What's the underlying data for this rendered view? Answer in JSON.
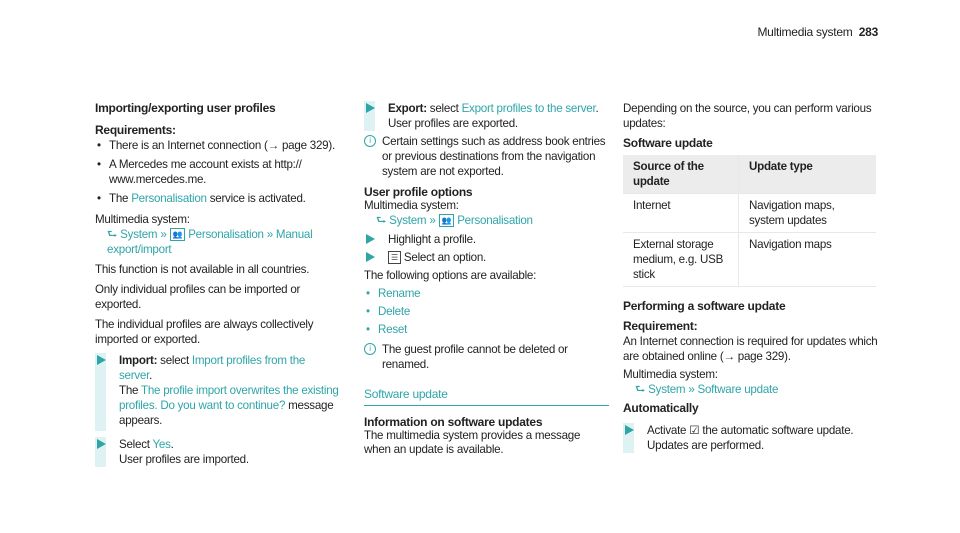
{
  "header": {
    "section": "Multimedia system",
    "page": "283"
  },
  "col1": {
    "title": "Importing/exporting user profiles",
    "req": "Requirements:",
    "b1": "There is an Internet connection (→ page 329).",
    "b2": "A Mercedes me account exists at http:// www.mercedes.me.",
    "b3a": "The ",
    "b3b": "Personalisation",
    "b3c": " service is activated.",
    "ms": "Multimedia system:",
    "path": [
      "System",
      "Personalisation",
      "Manual export/import"
    ],
    "p1": "This function is not available in all countries.",
    "p2": "Only individual profiles can be imported or exported.",
    "p3": "The individual profiles are always collectively imported or exported.",
    "s1a": "Import:",
    "s1b": " select ",
    "s1c": "Import profiles from the server",
    "s1d": ".",
    "s1e": "The ",
    "s1f": "The profile import overwrites the existing profiles. Do you want to continue?",
    "s1g": " message appears.",
    "s2a": "Select ",
    "s2b": "Yes",
    "s2c": ".",
    "s2d": "User profiles are imported."
  },
  "col2": {
    "s1a": "Export:",
    "s1b": " select ",
    "s1c": "Export profiles to the server",
    "s1d": ".",
    "s1e": "User profiles are exported.",
    "i1": "Certain settings such as address book entries or previous destinations from the navigation system are not exported.",
    "opt": "User profile options",
    "ms": "Multimedia system:",
    "path": [
      "System",
      "Personalisation"
    ],
    "h1": "Highlight a profile.",
    "h2": "Select an option.",
    "fol": "The following options are available:",
    "options": [
      "Rename",
      "Delete",
      "Reset"
    ],
    "i2": "The guest profile cannot be deleted or renamed.",
    "sec": "Software update",
    "inf": "Information on software updates",
    "infp": "The multimedia system provides a message when an update is available."
  },
  "col3": {
    "p1": "Depending on the source, you can perform various updates:",
    "sw": "Software update",
    "table": {
      "headers": [
        "Source of the update",
        "Update type"
      ],
      "rows": [
        [
          "Internet",
          "Navigation maps, system updates"
        ],
        [
          "External storage medium, e.g. USB stick",
          "Navigation maps"
        ]
      ]
    },
    "perf": "Performing a software update",
    "req": "Requirement:",
    "reqp": "An Internet connection is required for updates which are obtained online (→ page 329).",
    "ms": "Multimedia system:",
    "path": [
      "System",
      "Software update"
    ],
    "auto": "Automatically",
    "a1": "Activate ",
    "a2": " the automatic software update.",
    "a3": "Updates are performed."
  },
  "icons": {
    "accent": "#2fa5a8"
  }
}
